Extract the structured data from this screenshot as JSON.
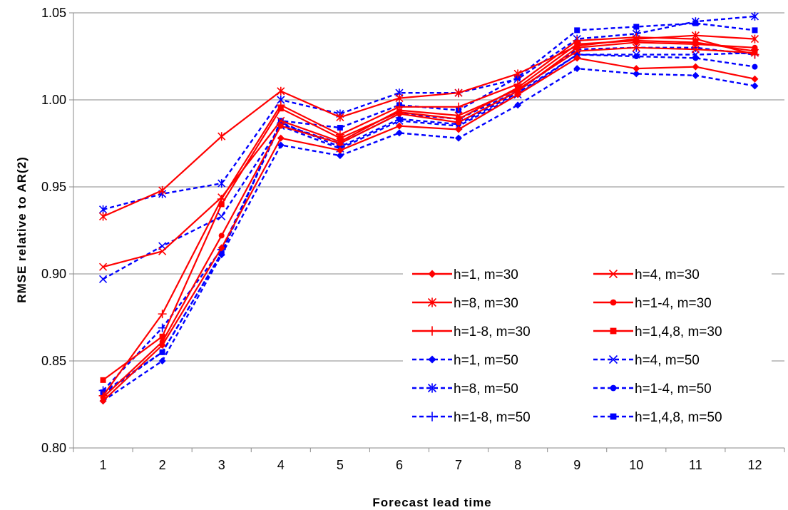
{
  "chart_data": {
    "type": "line",
    "xlabel": "Forecast lead time",
    "ylabel": "RMSE relative to AR(2)",
    "categories": [
      "1",
      "2",
      "3",
      "4",
      "5",
      "6",
      "7",
      "8",
      "9",
      "10",
      "11",
      "12"
    ],
    "ylim": [
      0.8,
      1.05
    ],
    "yticks": [
      0.8,
      0.85,
      0.9,
      0.95,
      1.0,
      1.05
    ],
    "ytick_labels": [
      "0.80",
      "0.85",
      "0.90",
      "0.95",
      "1.00",
      "1.05"
    ],
    "grid": "horizontal",
    "legend_position": "center-right",
    "series": [
      {
        "name": "h=1, m=30",
        "color": "#ff0000",
        "dash": "solid",
        "marker": "diamond",
        "values": [
          0.827,
          0.859,
          0.915,
          0.978,
          0.971,
          0.985,
          0.983,
          1.003,
          1.024,
          1.018,
          1.019,
          1.012
        ]
      },
      {
        "name": "h=4, m=30",
        "color": "#ff0000",
        "dash": "solid",
        "marker": "x",
        "values": [
          0.904,
          0.913,
          0.944,
          0.988,
          0.976,
          0.994,
          0.991,
          1.006,
          1.028,
          1.03,
          1.029,
          1.027
        ]
      },
      {
        "name": "h=8, m=30",
        "color": "#ff0000",
        "dash": "solid",
        "marker": "asterisk",
        "values": [
          0.933,
          0.948,
          0.979,
          1.005,
          0.99,
          1.001,
          1.004,
          1.015,
          1.031,
          1.035,
          1.037,
          1.035
        ]
      },
      {
        "name": "h=1-4, m=30",
        "color": "#ff0000",
        "dash": "solid",
        "marker": "circle",
        "values": [
          0.829,
          0.861,
          0.922,
          0.985,
          0.975,
          0.992,
          0.987,
          1.005,
          1.03,
          1.033,
          1.032,
          1.03
        ]
      },
      {
        "name": "h=1-8, m=30",
        "color": "#ff0000",
        "dash": "solid",
        "marker": "plus",
        "values": [
          0.83,
          0.877,
          0.943,
          0.997,
          0.98,
          0.996,
          0.996,
          1.009,
          1.034,
          1.036,
          1.035,
          1.026
        ]
      },
      {
        "name": "h=1,4,8, m=30",
        "color": "#ff0000",
        "dash": "solid",
        "marker": "square",
        "values": [
          0.839,
          0.864,
          0.94,
          0.995,
          0.978,
          0.993,
          0.989,
          1.007,
          1.032,
          1.034,
          1.033,
          1.028
        ]
      },
      {
        "name": "h=1, m=50",
        "color": "#0000ff",
        "dash": "dashed",
        "marker": "diamond",
        "values": [
          0.827,
          0.85,
          0.911,
          0.974,
          0.968,
          0.981,
          0.978,
          0.997,
          1.018,
          1.015,
          1.014,
          1.008
        ]
      },
      {
        "name": "h=4, m=50",
        "color": "#0000ff",
        "dash": "dashed",
        "marker": "x",
        "values": [
          0.897,
          0.916,
          0.933,
          0.985,
          0.972,
          0.988,
          0.985,
          1.003,
          1.026,
          1.026,
          1.026,
          1.027
        ]
      },
      {
        "name": "h=8, m=50",
        "color": "#0000ff",
        "dash": "dashed",
        "marker": "asterisk",
        "values": [
          0.937,
          0.946,
          0.952,
          1.0,
          0.992,
          1.004,
          1.004,
          1.012,
          1.035,
          1.038,
          1.045,
          1.048
        ]
      },
      {
        "name": "h=1-4, m=50",
        "color": "#0000ff",
        "dash": "dashed",
        "marker": "circle",
        "values": [
          0.831,
          0.855,
          0.912,
          0.987,
          0.973,
          0.989,
          0.986,
          1.004,
          1.026,
          1.025,
          1.024,
          1.019
        ]
      },
      {
        "name": "h=1-8, m=50",
        "color": "#0000ff",
        "dash": "dashed",
        "marker": "plus",
        "values": [
          0.833,
          0.869,
          0.914,
          0.986,
          0.975,
          0.992,
          0.989,
          1.005,
          1.029,
          1.03,
          1.03,
          1.026
        ]
      },
      {
        "name": "h=1,4,8, m=50",
        "color": "#0000ff",
        "dash": "dashed",
        "marker": "square",
        "values": [
          0.832,
          0.855,
          0.912,
          0.988,
          0.984,
          0.997,
          0.994,
          1.013,
          1.04,
          1.042,
          1.044,
          1.04
        ]
      }
    ]
  }
}
